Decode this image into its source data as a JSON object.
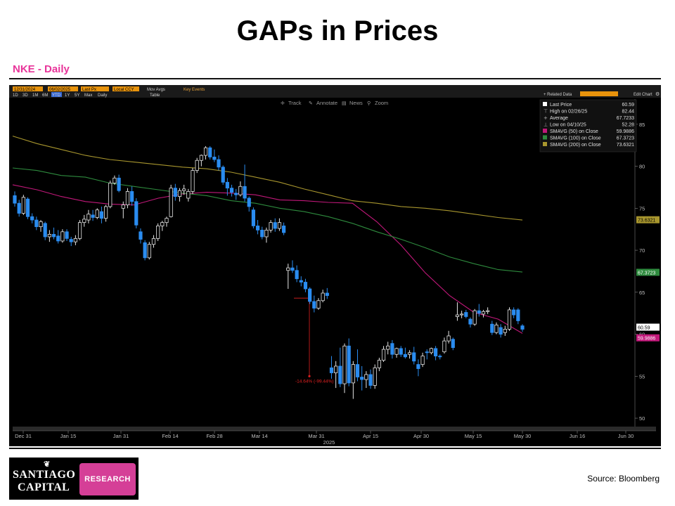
{
  "slide": {
    "title": "GAPs in Prices",
    "subtitle": "NKE - Daily",
    "source": "Source: Bloomberg"
  },
  "logo": {
    "line1": "Santiago",
    "line2": "Capital",
    "badge": "RESEARCH",
    "crest_icon": "crest-icon"
  },
  "colors": {
    "background": "#000000",
    "up": "#e6e6e6",
    "down": "#2a8cf0",
    "sma50": "#c2187a",
    "sma100": "#2e8b3e",
    "sma200": "#a8962e",
    "accent_pink": "#e8359a",
    "gap_marker": "#e02020"
  },
  "toolbar": {
    "start_date": "12/31/2024",
    "end_date": "06/02/2025",
    "last_px": "Last Px",
    "currency": "Local CCY",
    "mov_avgs": "Mov Avgs",
    "key_events": "Key Events",
    "periods": [
      "1D",
      "3D",
      "1M",
      "6M",
      "YTD",
      "1Y",
      "5Y",
      "Max"
    ],
    "active_period": "YTD",
    "frequency": "Daily",
    "table": "Table",
    "related_data": "+ Related Data",
    "edit_chart": "Edit Chart",
    "track": "Track",
    "annotate": "Annotate",
    "news": "News",
    "zoom": "Zoom"
  },
  "legend": [
    {
      "label": "Last Price",
      "value": "60.59",
      "marker": "square-white"
    },
    {
      "label": "High on 02/26/25",
      "value": "82.44",
      "marker": "high-marker"
    },
    {
      "label": "Average",
      "value": "67.7233",
      "marker": "average-marker"
    },
    {
      "label": "Low on 04/10/25",
      "value": "52.28",
      "marker": "low-marker"
    },
    {
      "label": "SMAVG (50)  on Close",
      "value": "59.9886",
      "marker": "square-magenta"
    },
    {
      "label": "SMAVG (100)  on Close",
      "value": "67.3723",
      "marker": "square-green"
    },
    {
      "label": "SMAVG (200)  on Close",
      "value": "73.6321",
      "marker": "square-yellow"
    }
  ],
  "chart_data": {
    "type": "candlestick",
    "title": "NKE - Daily",
    "ylim": [
      49,
      88
    ],
    "y_ticks": [
      50,
      55,
      60,
      65,
      70,
      75,
      80,
      85
    ],
    "x_ticks": [
      "Dec 31",
      "Jan 15",
      "Jan 31",
      "Feb 14",
      "Feb 28",
      "Mar 14",
      "Mar 31",
      "Apr 15",
      "Apr 30",
      "May 15",
      "May 30",
      "Jun 16",
      "Jun 30"
    ],
    "x_year_label": "2025",
    "price_tags": [
      {
        "label": "73.6321",
        "value": 73.6321,
        "series": "sma200"
      },
      {
        "label": "67.3723",
        "value": 67.3723,
        "series": "sma100"
      },
      {
        "label": "60.59",
        "value": 60.59,
        "series": "last"
      },
      {
        "label": "59.9886",
        "value": 59.9886,
        "series": "sma50"
      }
    ],
    "gap_annotation": {
      "label": "-14.64% (-99.44%)",
      "from_value": 64.3,
      "to_value": 55.0
    },
    "candles": [
      [
        76.5,
        77.0,
        75.2,
        75.6
      ],
      [
        75.6,
        76.0,
        74.0,
        74.4
      ],
      [
        74.4,
        76.6,
        74.2,
        76.3
      ],
      [
        76.1,
        76.3,
        73.7,
        74.0
      ],
      [
        74.0,
        74.4,
        73.2,
        73.6
      ],
      [
        73.6,
        74.0,
        72.4,
        72.8
      ],
      [
        72.8,
        73.6,
        72.2,
        73.4
      ],
      [
        73.2,
        73.4,
        71.2,
        71.6
      ],
      [
        71.6,
        72.4,
        71.0,
        71.9
      ],
      [
        71.9,
        72.7,
        71.3,
        71.6
      ],
      [
        71.7,
        72.4,
        70.8,
        71.1
      ],
      [
        71.1,
        72.5,
        70.9,
        72.2
      ],
      [
        72.2,
        72.5,
        71.1,
        71.4
      ],
      [
        71.3,
        71.6,
        70.5,
        71.0
      ],
      [
        71.0,
        71.8,
        70.6,
        71.4
      ],
      [
        71.4,
        73.6,
        71.2,
        73.3
      ],
      [
        73.3,
        74.2,
        72.8,
        73.7
      ],
      [
        73.6,
        74.8,
        73.2,
        74.3
      ],
      [
        74.2,
        74.8,
        73.5,
        73.9
      ],
      [
        73.9,
        75.0,
        73.7,
        74.8
      ],
      [
        74.6,
        75.2,
        73.2,
        73.8
      ],
      [
        73.8,
        75.4,
        73.4,
        75.2
      ],
      [
        75.2,
        78.3,
        75.0,
        78.0
      ],
      [
        78.0,
        78.9,
        77.8,
        78.6
      ],
      [
        78.6,
        79.0,
        76.9,
        77.1
      ],
      [
        75.0,
        75.8,
        73.8,
        75.4
      ],
      [
        75.4,
        77.4,
        75.0,
        77.0
      ],
      [
        77.0,
        77.6,
        75.3,
        75.8
      ],
      [
        75.8,
        76.2,
        72.6,
        73.0
      ],
      [
        72.2,
        72.6,
        70.8,
        71.3
      ],
      [
        70.9,
        71.2,
        68.8,
        69.1
      ],
      [
        69.1,
        71.0,
        68.9,
        70.7
      ],
      [
        70.7,
        71.8,
        70.3,
        71.4
      ],
      [
        71.4,
        73.2,
        71.1,
        72.9
      ],
      [
        72.9,
        73.5,
        72.3,
        73.3
      ],
      [
        73.3,
        74.0,
        72.8,
        73.8
      ],
      [
        74.0,
        77.8,
        73.9,
        77.4
      ],
      [
        77.4,
        77.9,
        75.9,
        76.4
      ],
      [
        76.4,
        77.4,
        75.8,
        77.1
      ],
      [
        77.1,
        77.8,
        76.6,
        77.3
      ],
      [
        76.2,
        77.3,
        75.8,
        77.0
      ],
      [
        77.0,
        79.8,
        76.7,
        79.5
      ],
      [
        79.5,
        81.0,
        79.2,
        80.7
      ],
      [
        80.7,
        81.4,
        80.0,
        81.3
      ],
      [
        81.3,
        82.4,
        80.8,
        82.2
      ],
      [
        82.2,
        82.4,
        80.8,
        81.1
      ],
      [
        81.1,
        82.0,
        80.5,
        80.8
      ],
      [
        80.8,
        81.3,
        79.5,
        79.9
      ],
      [
        79.9,
        80.1,
        77.8,
        78.1
      ],
      [
        78.1,
        78.6,
        76.5,
        77.4
      ],
      [
        77.4,
        77.8,
        76.4,
        76.9
      ],
      [
        76.8,
        77.3,
        76.0,
        76.6
      ],
      [
        76.6,
        78.2,
        76.4,
        77.6
      ],
      [
        77.6,
        80.2,
        75.8,
        76.2
      ],
      [
        76.2,
        76.4,
        74.6,
        75.2
      ],
      [
        74.8,
        75.1,
        72.6,
        72.9
      ],
      [
        72.9,
        73.6,
        71.9,
        72.4
      ],
      [
        72.4,
        72.8,
        71.3,
        71.6
      ],
      [
        71.6,
        72.7,
        70.9,
        72.4
      ],
      [
        72.4,
        73.6,
        72.1,
        73.3
      ],
      [
        73.3,
        73.8,
        72.2,
        72.6
      ],
      [
        72.6,
        73.8,
        72.3,
        73.3
      ],
      [
        72.9,
        73.3,
        71.8,
        72.1
      ],
      [
        67.6,
        68.4,
        65.4,
        67.9
      ],
      [
        67.9,
        68.8,
        67.3,
        67.6
      ],
      [
        67.6,
        68.2,
        66.2,
        66.6
      ],
      [
        66.4,
        66.9,
        65.7,
        66.2
      ],
      [
        66.2,
        66.6,
        65.0,
        65.4
      ],
      [
        65.4,
        65.6,
        63.6,
        63.9
      ],
      [
        63.9,
        64.6,
        62.6,
        63.1
      ],
      [
        63.1,
        64.3,
        62.9,
        64.0
      ],
      [
        64.0,
        65.3,
        63.8,
        64.9
      ],
      [
        64.9,
        65.5,
        64.2,
        64.6
      ],
      [
        56.0,
        57.4,
        54.7,
        55.4
      ],
      [
        55.4,
        56.8,
        53.6,
        56.2
      ],
      [
        56.2,
        58.4,
        53.7,
        54.1
      ],
      [
        54.1,
        58.9,
        53.0,
        58.6
      ],
      [
        58.6,
        59.5,
        53.8,
        54.2
      ],
      [
        54.2,
        56.8,
        52.3,
        56.4
      ],
      [
        56.4,
        58.2,
        54.4,
        54.9
      ],
      [
        54.9,
        56.2,
        53.3,
        54.6
      ],
      [
        54.6,
        55.6,
        53.6,
        55.2
      ],
      [
        55.2,
        55.8,
        53.5,
        53.9
      ],
      [
        53.9,
        56.4,
        53.5,
        56.0
      ],
      [
        56.0,
        57.2,
        55.6,
        56.9
      ],
      [
        56.9,
        58.6,
        56.7,
        58.2
      ],
      [
        58.2,
        59.1,
        57.6,
        58.6
      ],
      [
        58.9,
        59.3,
        57.1,
        57.6
      ],
      [
        57.6,
        58.4,
        57.2,
        58.3
      ],
      [
        58.3,
        58.6,
        57.3,
        57.6
      ],
      [
        57.6,
        58.4,
        57.1,
        57.3
      ],
      [
        57.6,
        58.1,
        57.1,
        57.8
      ],
      [
        57.8,
        58.5,
        56.4,
        56.8
      ],
      [
        56.4,
        57.0,
        55.0,
        55.9
      ],
      [
        56.4,
        57.8,
        56.1,
        57.4
      ],
      [
        57.9,
        58.2,
        57.0,
        57.8
      ],
      [
        57.8,
        58.4,
        57.6,
        58.3
      ],
      [
        58.3,
        58.6,
        56.9,
        57.4
      ],
      [
        57.4,
        57.6,
        57.0,
        57.3
      ],
      [
        57.9,
        59.6,
        57.7,
        59.2
      ],
      [
        59.2,
        60.4,
        58.9,
        59.8
      ],
      [
        59.4,
        59.6,
        58.1,
        58.4
      ],
      [
        62.1,
        63.8,
        61.6,
        62.3
      ],
      [
        62.3,
        62.8,
        61.9,
        62.4
      ],
      [
        62.6,
        62.9,
        61.9,
        62.1
      ],
      [
        61.8,
        62.0,
        60.8,
        61.2
      ],
      [
        61.2,
        63.0,
        61.0,
        62.8
      ],
      [
        62.8,
        63.6,
        62.1,
        62.5
      ],
      [
        62.4,
        62.9,
        62.0,
        62.7
      ],
      [
        62.7,
        63.2,
        62.4,
        62.8
      ],
      [
        61.2,
        61.6,
        59.9,
        60.2
      ],
      [
        60.2,
        61.4,
        60.0,
        61.1
      ],
      [
        60.8,
        61.2,
        59.6,
        60.0
      ],
      [
        60.2,
        61.0,
        59.8,
        60.6
      ],
      [
        60.6,
        63.2,
        60.4,
        62.9
      ],
      [
        62.9,
        63.2,
        61.9,
        62.3
      ],
      [
        62.9,
        63.1,
        61.2,
        61.6
      ],
      [
        61.0,
        61.2,
        60.3,
        60.59
      ]
    ],
    "x_dates_note": "candles span Dec 31 2024 to May 30 2025 trading days",
    "sma_series": [
      {
        "name": "SMAVG (50)  on Close",
        "values": [
          77.8,
          77.2,
          76.4,
          75.8,
          75.5,
          75.4,
          76.2,
          76.7,
          76.9,
          76.8,
          76.6,
          76.0,
          75.9,
          75.7,
          75.6,
          73.4,
          70.6,
          67.3,
          64.6,
          62.6,
          61.8,
          60.1
        ]
      },
      {
        "name": "SMAVG (100)  on Close",
        "values": [
          79.8,
          79.5,
          78.9,
          78.7,
          78.0,
          77.6,
          77.2,
          76.8,
          76.5,
          75.9,
          75.6,
          75.0,
          74.6,
          74.0,
          73.2,
          72.2,
          71.3,
          70.3,
          69.2,
          68.4,
          67.7,
          67.4
        ]
      },
      {
        "name": "SMAVG (200)  on Close",
        "values": [
          83.6,
          82.7,
          82.0,
          81.3,
          80.8,
          80.5,
          80.2,
          79.9,
          79.7,
          79.3,
          78.7,
          78.1,
          77.3,
          76.6,
          75.9,
          75.6,
          75.2,
          75.0,
          74.7,
          74.3,
          73.9,
          73.6
        ]
      }
    ]
  }
}
